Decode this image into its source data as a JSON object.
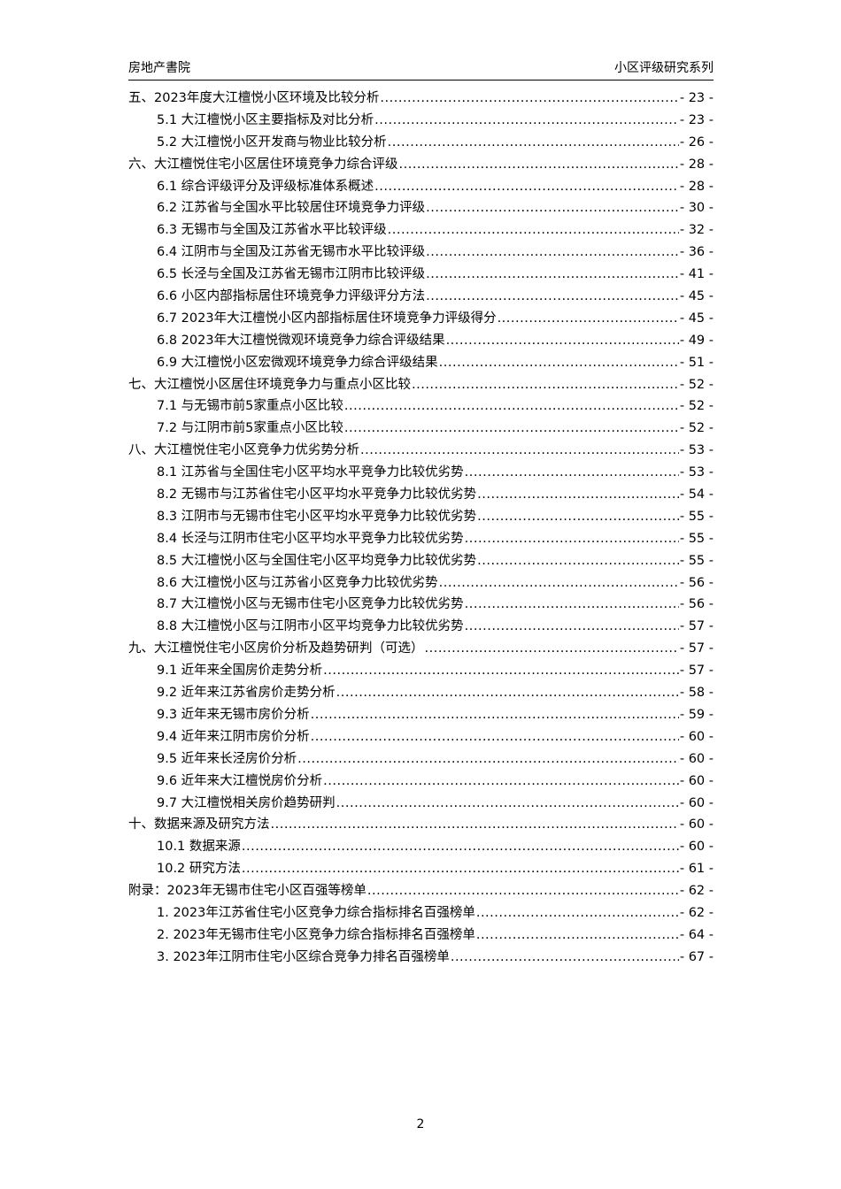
{
  "header": {
    "left": "房地产書院",
    "right": "小区评级研究系列"
  },
  "toc": [
    {
      "level": 1,
      "title": "五、2023年度大江檀悦小区环境及比较分析",
      "page": "- 23 -"
    },
    {
      "level": 2,
      "title": "5.1 大江檀悦小区主要指标及对比分析",
      "page": "- 23 -"
    },
    {
      "level": 2,
      "title": "5.2 大江檀悦小区开发商与物业比较分析",
      "page": "- 26 -"
    },
    {
      "level": 1,
      "title": "六、大江檀悦住宅小区居住环境竞争力综合评级",
      "page": "- 28 -"
    },
    {
      "level": 2,
      "title": "6.1 综合评级评分及评级标准体系概述",
      "page": "- 28 -"
    },
    {
      "level": 2,
      "title": "6.2 江苏省与全国水平比较居住环境竞争力评级",
      "page": "- 30 -"
    },
    {
      "level": 2,
      "title": "6.3 无锡市与全国及江苏省水平比较评级",
      "page": "- 32 -"
    },
    {
      "level": 2,
      "title": "6.4 江阴市与全国及江苏省无锡市水平比较评级",
      "page": "- 36 -"
    },
    {
      "level": 2,
      "title": "6.5 长泾与全国及江苏省无锡市江阴市比较评级",
      "page": "- 41 -"
    },
    {
      "level": 2,
      "title": "6.6 小区内部指标居住环境竞争力评级评分方法",
      "page": "- 45 -"
    },
    {
      "level": 2,
      "title": "6.7 2023年大江檀悦小区内部指标居住环境竞争力评级得分",
      "page": "- 45 -"
    },
    {
      "level": 2,
      "title": "6.8 2023年大江檀悦微观环境竞争力综合评级结果",
      "page": "- 49 -"
    },
    {
      "level": 2,
      "title": "6.9 大江檀悦小区宏微观环境竞争力综合评级结果",
      "page": "- 51 -"
    },
    {
      "level": 1,
      "title": "七、大江檀悦小区居住环境竞争力与重点小区比较",
      "page": "- 52 -"
    },
    {
      "level": 2,
      "title": "7.1 与无锡市前5家重点小区比较",
      "page": "- 52 -"
    },
    {
      "level": 2,
      "title": "7.2 与江阴市前5家重点小区比较",
      "page": "- 52 -"
    },
    {
      "level": 1,
      "title": "八、大江檀悦住宅小区竞争力优劣势分析",
      "page": "- 53 -"
    },
    {
      "level": 2,
      "title": "8.1 江苏省与全国住宅小区平均水平竞争力比较优劣势",
      "page": "- 53 -"
    },
    {
      "level": 2,
      "title": "8.2 无锡市与江苏省住宅小区平均水平竞争力比较优劣势",
      "page": "- 54 -"
    },
    {
      "level": 2,
      "title": "8.3 江阴市与无锡市住宅小区平均水平竞争力比较优劣势",
      "page": "- 55 -"
    },
    {
      "level": 2,
      "title": "8.4 长泾与江阴市住宅小区平均水平竞争力比较优劣势",
      "page": "- 55 -"
    },
    {
      "level": 2,
      "title": "8.5 大江檀悦小区与全国住宅小区平均竞争力比较优劣势",
      "page": "- 55 -"
    },
    {
      "level": 2,
      "title": "8.6 大江檀悦小区与江苏省小区竞争力比较优劣势",
      "page": "- 56 -"
    },
    {
      "level": 2,
      "title": "8.7 大江檀悦小区与无锡市住宅小区竞争力比较优劣势",
      "page": "- 56 -"
    },
    {
      "level": 2,
      "title": "8.8 大江檀悦小区与江阴市小区平均竞争力比较优劣势",
      "page": "- 57 -"
    },
    {
      "level": 1,
      "title": "九、大江檀悦住宅小区房价分析及趋势研判（可选）",
      "page": "- 57 -"
    },
    {
      "level": 2,
      "title": "9.1 近年来全国房价走势分析",
      "page": "- 57 -"
    },
    {
      "level": 2,
      "title": "9.2 近年来江苏省房价走势分析",
      "page": "- 58 -"
    },
    {
      "level": 2,
      "title": "9.3 近年来无锡市房价分析",
      "page": "- 59 -"
    },
    {
      "level": 2,
      "title": "9.4 近年来江阴市房价分析",
      "page": "- 60 -"
    },
    {
      "level": 2,
      "title": "9.5 近年来长泾房价分析",
      "page": "- 60 -"
    },
    {
      "level": 2,
      "title": "9.6 近年来大江檀悦房价分析",
      "page": "- 60 -"
    },
    {
      "level": 2,
      "title": "9.7 大江檀悦相关房价趋势研判",
      "page": "- 60 -"
    },
    {
      "level": 1,
      "title": "十、数据来源及研究方法",
      "page": "- 60 -"
    },
    {
      "level": 2,
      "title": "10.1 数据来源",
      "page": "- 60 -"
    },
    {
      "level": 2,
      "title": "10.2 研究方法",
      "page": "- 61 -"
    },
    {
      "level": 1,
      "title": "附录：2023年无锡市住宅小区百强等榜单",
      "page": "- 62 -"
    },
    {
      "level": 2,
      "title": "1. 2023年江苏省住宅小区竞争力综合指标排名百强榜单",
      "page": "- 62 -"
    },
    {
      "level": 2,
      "title": "2. 2023年无锡市住宅小区竞争力综合指标排名百强榜单",
      "page": "- 64 -"
    },
    {
      "level": 2,
      "title": "3. 2023年江阴市住宅小区综合竞争力排名百强榜单",
      "page": "- 67 -"
    }
  ],
  "page_number": "2"
}
